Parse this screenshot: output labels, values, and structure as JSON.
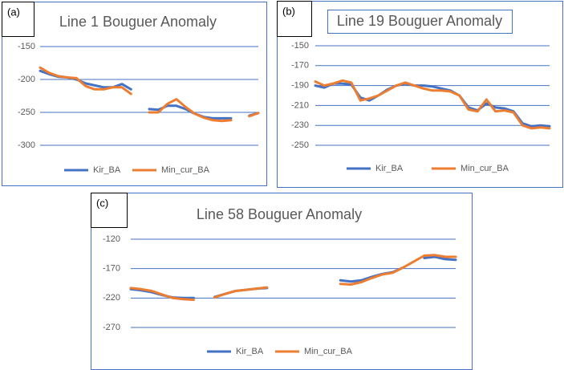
{
  "chart_data": [
    {
      "type": "line",
      "label": "(a)",
      "title": "Line 1 Bouguer Anomaly",
      "categories": [
        null,
        null,
        null,
        null,
        null,
        null,
        null,
        null,
        null,
        null,
        null,
        null,
        null,
        null,
        null,
        null,
        null,
        null,
        null,
        null,
        null,
        null,
        null,
        null,
        null
      ],
      "ylim": [
        -300,
        -150
      ],
      "yticks": [
        -150,
        -200,
        -250,
        -300
      ],
      "grid": true,
      "series": [
        {
          "name": "Kir_BA",
          "color": "#4472c4",
          "values": [
            -187,
            -192,
            -196,
            -197,
            -200,
            -206,
            -209,
            -212,
            -212,
            -207,
            -215,
            null,
            -245,
            -246,
            -240,
            -240,
            -245,
            -252,
            -257,
            -259,
            -259,
            -259,
            null,
            -255,
            -251
          ]
        },
        {
          "name": "Min_cur_BA",
          "color": "#ed7d31",
          "values": [
            -182,
            -190,
            -195,
            -197,
            -198,
            -210,
            -215,
            -215,
            -212,
            -212,
            -222,
            null,
            -250,
            -250,
            -237,
            -230,
            -242,
            -252,
            -258,
            -262,
            -263,
            -262,
            null,
            -256,
            -251
          ]
        }
      ]
    },
    {
      "type": "line",
      "label": "(b)",
      "title": "Line 19 Bouguer Anomaly",
      "categories": [
        null,
        null,
        null,
        null,
        null,
        null,
        null,
        null,
        null,
        null,
        null,
        null,
        null,
        null,
        null,
        null,
        null,
        null,
        null,
        null,
        null,
        null,
        null,
        null,
        null,
        null,
        null
      ],
      "ylim": [
        -250,
        -150
      ],
      "yticks": [
        -150,
        -170,
        -190,
        -210,
        -230,
        -250
      ],
      "grid": true,
      "series": [
        {
          "name": "Kir_BA",
          "color": "#4472c4",
          "values": [
            -190,
            -192,
            -188,
            -188,
            -189,
            -202,
            -205,
            -200,
            -194,
            -190,
            -188,
            -190,
            -190,
            -191,
            -193,
            -195,
            -200,
            -212,
            -215,
            -208,
            -212,
            -213,
            -216,
            -228,
            -231,
            -230,
            -231
          ]
        },
        {
          "name": "Min_cur_BA",
          "color": "#ed7d31",
          "values": [
            -186,
            -190,
            -188,
            -185,
            -187,
            -205,
            -203,
            -200,
            -195,
            -190,
            -187,
            -190,
            -193,
            -195,
            -195,
            -196,
            -200,
            -214,
            -216,
            -204,
            -216,
            -215,
            -217,
            -230,
            -233,
            -232,
            -233
          ]
        }
      ]
    },
    {
      "type": "line",
      "label": "(c)",
      "title": "Line 58 Bouguer Anomaly",
      "categories": [
        null,
        null,
        null,
        null,
        null,
        null,
        null,
        null,
        null,
        null,
        null,
        null,
        null,
        null,
        null,
        null,
        null,
        null,
        null,
        null,
        null,
        null,
        null,
        null,
        null,
        null,
        null,
        null,
        null,
        null,
        null,
        null
      ],
      "ylim": [
        -270,
        -120
      ],
      "yticks": [
        -120,
        -170,
        -220,
        -270
      ],
      "grid": true,
      "series": [
        {
          "name": "Kir_BA",
          "color": "#4472c4",
          "values": [
            -205,
            -207,
            -210,
            -215,
            -219,
            -220,
            -220,
            null,
            -218,
            -213,
            -208,
            -206,
            -204,
            -203,
            null,
            null,
            null,
            null,
            null,
            null,
            -190,
            -192,
            -190,
            -184,
            -179,
            -176,
            -168,
            null,
            -152,
            -150,
            -154,
            -155
          ]
        },
        {
          "name": "Min_cur_BA",
          "color": "#ed7d31",
          "values": [
            -203,
            -205,
            -208,
            -214,
            -220,
            -222,
            -223,
            null,
            -219,
            -213,
            -208,
            -206,
            -204,
            -202,
            null,
            null,
            null,
            null,
            null,
            null,
            -196,
            -197,
            -193,
            -186,
            -180,
            -177,
            -168,
            -158,
            -148,
            -147,
            -150,
            -150
          ]
        }
      ]
    }
  ]
}
